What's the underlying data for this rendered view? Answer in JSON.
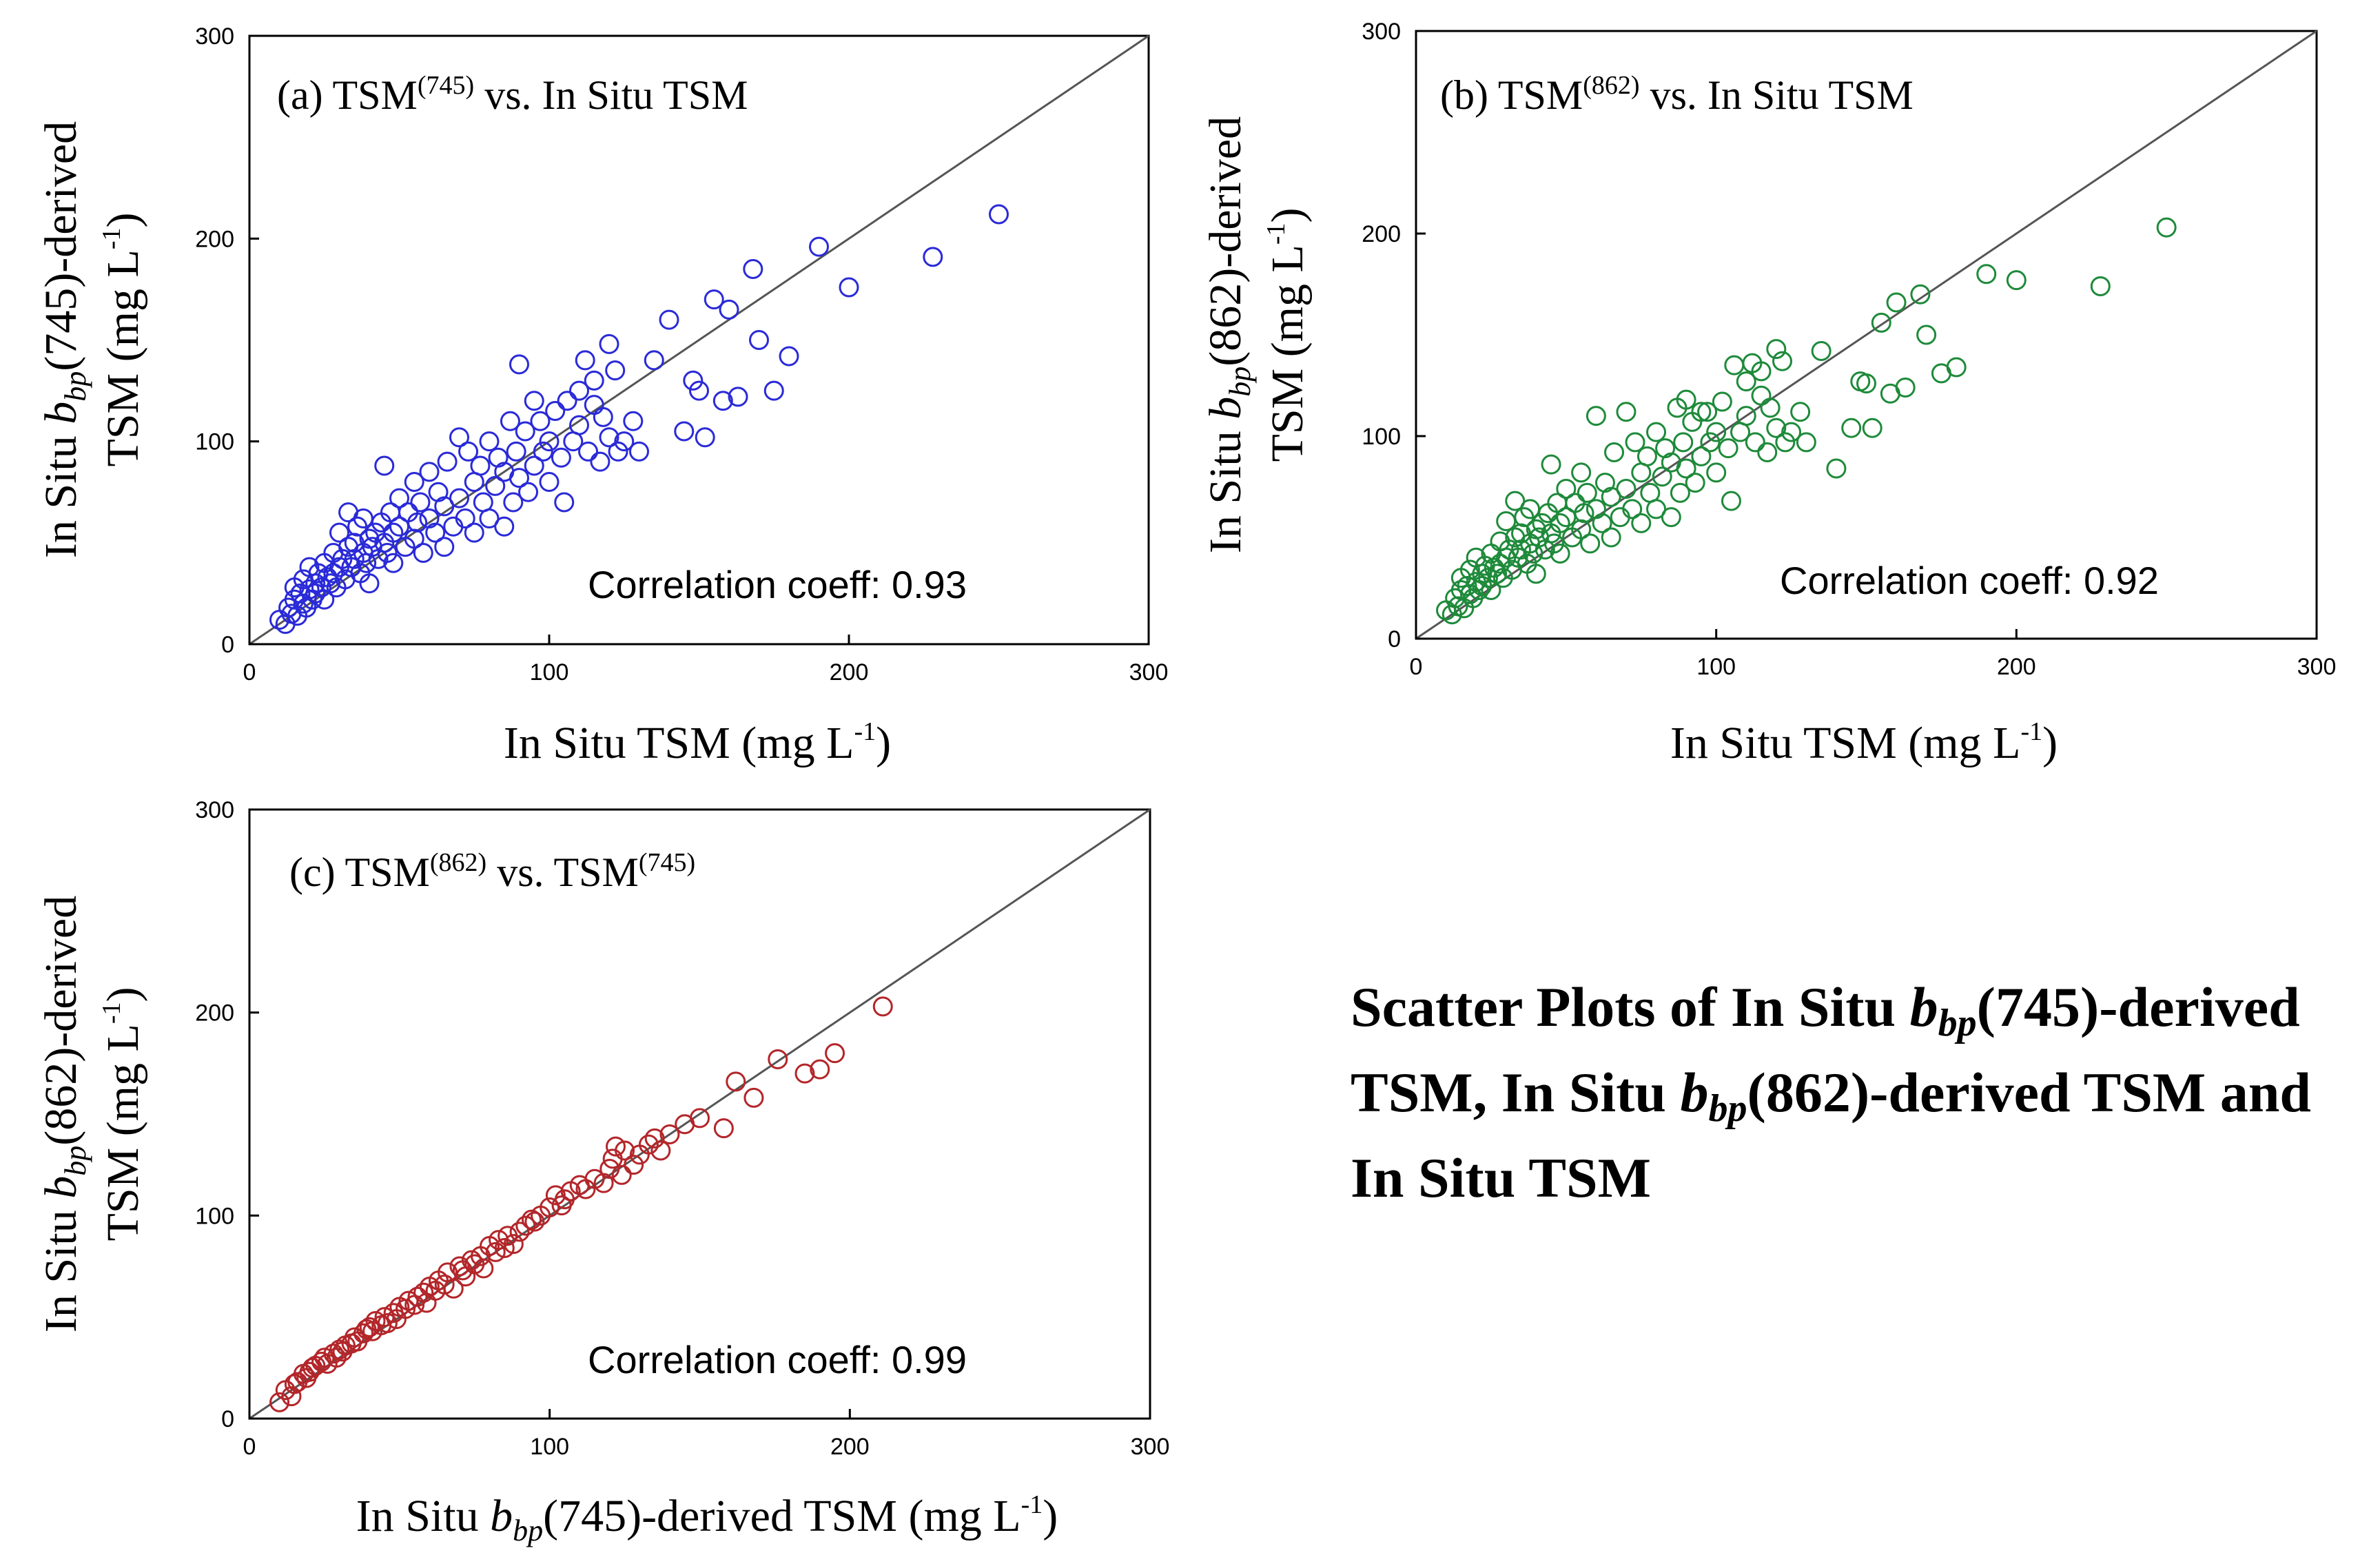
{
  "caption": {
    "part1": "Scatter Plots of In Situ ",
    "b": "b",
    "sub1": "bp",
    "part2": "(745)-derived TSM, In Situ ",
    "sub2": "bp",
    "part3": "(862)-derived TSM and  In Situ TSM"
  },
  "chart_data": [
    {
      "id": "a",
      "type": "scatter",
      "title_text": "(a) TSM",
      "title_sup": "(745)",
      "title_rest": " vs. In Situ TSM",
      "xlabel_text": "In Situ TSM (mg L",
      "xlabel_sup": "-1",
      "xlabel_end": ")",
      "ylabel_line1_pre": "In Situ ",
      "ylabel_b": "b",
      "ylabel_sub": "bp",
      "ylabel_line1_post": "(745)-derived",
      "ylabel_line2_text": "TSM (mg L",
      "ylabel_line2_sup": "-1",
      "ylabel_line2_end": ")",
      "correlation": "Correlation coeff: 0.93",
      "xlim": [
        0,
        300
      ],
      "ylim": [
        0,
        300
      ],
      "xticks": [
        "0",
        "100",
        "200",
        "300"
      ],
      "yticks": [
        "0",
        "100",
        "200",
        "300"
      ],
      "color": "#2a2ad8",
      "reference_line": "1:1",
      "x": [
        10,
        12,
        13,
        14,
        15,
        15,
        16,
        17,
        18,
        18,
        19,
        20,
        20,
        21,
        22,
        22,
        23,
        24,
        25,
        25,
        26,
        27,
        28,
        28,
        29,
        30,
        30,
        31,
        32,
        33,
        33,
        34,
        35,
        35,
        36,
        37,
        38,
        38,
        39,
        40,
        40,
        41,
        42,
        43,
        44,
        45,
        45,
        46,
        47,
        48,
        48,
        50,
        50,
        52,
        53,
        55,
        55,
        56,
        57,
        58,
        60,
        60,
        62,
        63,
        65,
        65,
        66,
        68,
        70,
        70,
        72,
        73,
        75,
        75,
        77,
        78,
        80,
        80,
        82,
        83,
        85,
        85,
        87,
        88,
        89,
        90,
        90,
        92,
        93,
        95,
        95,
        97,
        98,
        100,
        100,
        102,
        104,
        105,
        106,
        108,
        110,
        110,
        112,
        113,
        115,
        115,
        117,
        118,
        120,
        120,
        122,
        123,
        125,
        128,
        130,
        135,
        140,
        145,
        148,
        150,
        152,
        155,
        158,
        160,
        163,
        168,
        170,
        175,
        180,
        190,
        200,
        228,
        250
      ],
      "y": [
        12,
        10,
        18,
        15,
        22,
        28,
        14,
        25,
        20,
        32,
        18,
        27,
        38,
        22,
        30,
        25,
        35,
        28,
        40,
        22,
        33,
        30,
        45,
        35,
        28,
        38,
        55,
        42,
        32,
        48,
        65,
        38,
        50,
        42,
        58,
        35,
        45,
        62,
        40,
        52,
        30,
        48,
        55,
        42,
        60,
        88,
        50,
        45,
        65,
        40,
        55,
        58,
        72,
        48,
        65,
        80,
        52,
        60,
        70,
        45,
        62,
        85,
        55,
        75,
        48,
        68,
        90,
        58,
        102,
        72,
        62,
        95,
        80,
        55,
        88,
        70,
        100,
        62,
        78,
        92,
        58,
        85,
        110,
        70,
        95,
        82,
        138,
        105,
        75,
        120,
        88,
        110,
        95,
        100,
        80,
        115,
        92,
        70,
        120,
        100,
        125,
        108,
        140,
        95,
        118,
        130,
        90,
        112,
        148,
        102,
        135,
        95,
        100,
        110,
        95,
        140,
        160,
        105,
        130,
        125,
        102,
        170,
        120,
        165,
        122,
        185,
        150,
        125,
        142,
        196,
        176,
        191,
        212
      ]
    },
    {
      "id": "b",
      "type": "scatter",
      "title_text": "(b) TSM",
      "title_sup": "(862)",
      "title_rest": " vs. In Situ TSM",
      "xlabel_text": "In Situ TSM (mg L",
      "xlabel_sup": "-1",
      "xlabel_end": ")",
      "ylabel_line1_pre": "In Situ ",
      "ylabel_b": "b",
      "ylabel_sub": "bp",
      "ylabel_line1_post": "(862)-derived",
      "ylabel_line2_text": "TSM (mg L",
      "ylabel_line2_sup": "-1",
      "ylabel_line2_end": ")",
      "correlation": "Correlation coeff: 0.92",
      "xlim": [
        0,
        300
      ],
      "ylim": [
        0,
        300
      ],
      "xticks": [
        "0",
        "100",
        "200",
        "300"
      ],
      "yticks": [
        "0",
        "100",
        "200",
        "300"
      ],
      "color": "#1e8a3a",
      "reference_line": "1:1",
      "x": [
        10,
        12,
        13,
        14,
        15,
        15,
        16,
        17,
        18,
        18,
        19,
        20,
        20,
        21,
        22,
        22,
        23,
        24,
        25,
        25,
        26,
        27,
        28,
        28,
        29,
        30,
        30,
        31,
        32,
        33,
        33,
        34,
        35,
        35,
        36,
        37,
        38,
        38,
        39,
        40,
        40,
        41,
        42,
        43,
        44,
        45,
        45,
        46,
        47,
        48,
        48,
        50,
        50,
        52,
        53,
        55,
        55,
        56,
        57,
        58,
        60,
        60,
        62,
        63,
        65,
        65,
        66,
        68,
        70,
        70,
        72,
        73,
        75,
        75,
        77,
        78,
        80,
        80,
        82,
        83,
        85,
        85,
        87,
        88,
        89,
        90,
        90,
        92,
        93,
        95,
        95,
        97,
        98,
        100,
        100,
        102,
        104,
        105,
        106,
        108,
        110,
        110,
        112,
        113,
        115,
        115,
        117,
        118,
        120,
        120,
        122,
        123,
        125,
        128,
        130,
        135,
        140,
        145,
        148,
        150,
        152,
        155,
        158,
        160,
        163,
        168,
        170,
        175,
        180,
        190,
        200,
        228,
        250
      ],
      "y": [
        14,
        12,
        20,
        16,
        24,
        30,
        15,
        26,
        22,
        34,
        20,
        28,
        40,
        24,
        32,
        26,
        36,
        30,
        42,
        24,
        35,
        32,
        48,
        37,
        30,
        40,
        58,
        44,
        34,
        50,
        68,
        40,
        52,
        44,
        60,
        37,
        47,
        64,
        42,
        54,
        32,
        50,
        57,
        44,
        62,
        86,
        52,
        47,
        67,
        42,
        57,
        60,
        74,
        50,
        67,
        82,
        54,
        62,
        72,
        47,
        64,
        110,
        57,
        77,
        50,
        70,
        92,
        60,
        112,
        74,
        64,
        97,
        82,
        57,
        90,
        72,
        102,
        64,
        80,
        94,
        60,
        87,
        114,
        72,
        97,
        84,
        118,
        107,
        77,
        112,
        90,
        112,
        97,
        102,
        82,
        117,
        94,
        68,
        135,
        102,
        127,
        110,
        136,
        97,
        120,
        132,
        92,
        114,
        143,
        104,
        137,
        97,
        102,
        112,
        97,
        142,
        84,
        104,
        127,
        126,
        104,
        156,
        121,
        166,
        124,
        170,
        150,
        131,
        134,
        180,
        177,
        174,
        203
      ]
    },
    {
      "id": "c",
      "type": "scatter",
      "title_text": "(c) TSM",
      "title_sup": "(862)",
      "title_rest": " vs. TSM",
      "title_sup2": "(745)",
      "xlabel_pre": "In Situ ",
      "xlabel_b": "b",
      "xlabel_sub": "bp",
      "xlabel_post": "(745)-derived TSM (mg L",
      "xlabel_sup": "-1",
      "xlabel_end": ")",
      "ylabel_line1_pre": "In Situ ",
      "ylabel_b": "b",
      "ylabel_sub": "bp",
      "ylabel_line1_post": "(862)-derived",
      "ylabel_line2_text": "TSM (mg L",
      "ylabel_line2_sup": "-1",
      "ylabel_line2_end": ")",
      "correlation": "Correlation coeff: 0.99",
      "xlim": [
        0,
        300
      ],
      "ylim": [
        0,
        300
      ],
      "xticks": [
        "0",
        "100",
        "200",
        "300"
      ],
      "yticks": [
        "0",
        "100",
        "200",
        "300"
      ],
      "color": "#b3262a",
      "reference_line": "1:1",
      "x": [
        10,
        12,
        14,
        15,
        16,
        18,
        19,
        20,
        21,
        22,
        24,
        25,
        26,
        28,
        29,
        30,
        31,
        32,
        34,
        35,
        36,
        38,
        39,
        40,
        41,
        42,
        44,
        45,
        46,
        48,
        49,
        50,
        52,
        53,
        55,
        56,
        58,
        59,
        60,
        62,
        63,
        65,
        66,
        68,
        70,
        71,
        72,
        74,
        75,
        77,
        78,
        80,
        82,
        83,
        85,
        86,
        88,
        90,
        92,
        94,
        95,
        97,
        100,
        102,
        104,
        105,
        107,
        110,
        112,
        115,
        118,
        120,
        121,
        122,
        124,
        125,
        128,
        130,
        133,
        135,
        137,
        140,
        145,
        150,
        158,
        162,
        168,
        176,
        185,
        190,
        195,
        211
      ],
      "y": [
        8,
        14,
        11,
        17,
        18,
        22,
        20,
        23,
        25,
        26,
        28,
        30,
        27,
        32,
        30,
        34,
        33,
        36,
        37,
        40,
        38,
        42,
        44,
        45,
        43,
        48,
        46,
        50,
        47,
        52,
        49,
        55,
        54,
        58,
        56,
        60,
        62,
        57,
        65,
        63,
        68,
        66,
        72,
        64,
        75,
        73,
        70,
        78,
        76,
        80,
        74,
        85,
        82,
        88,
        84,
        90,
        86,
        92,
        95,
        98,
        97,
        100,
        104,
        110,
        105,
        108,
        112,
        115,
        113,
        118,
        116,
        123,
        128,
        134,
        120,
        132,
        125,
        130,
        135,
        138,
        132,
        140,
        145,
        148,
        143,
        166,
        158,
        177,
        170,
        172,
        180,
        203
      ]
    }
  ]
}
